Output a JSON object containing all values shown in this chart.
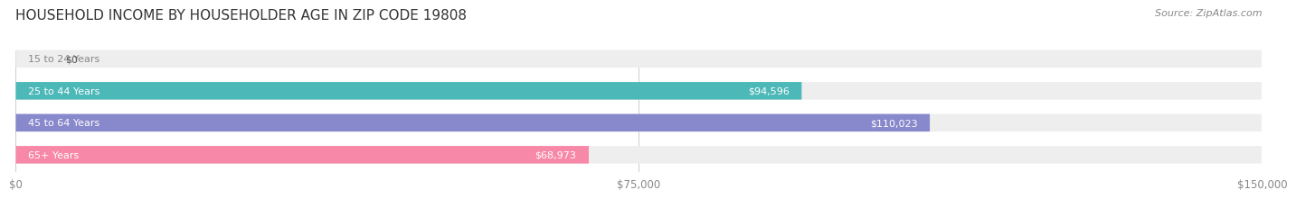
{
  "title": "HOUSEHOLD INCOME BY HOUSEHOLDER AGE IN ZIP CODE 19808",
  "source": "Source: ZipAtlas.com",
  "categories": [
    "15 to 24 Years",
    "25 to 44 Years",
    "45 to 64 Years",
    "65+ Years"
  ],
  "values": [
    0,
    94596,
    110023,
    68973
  ],
  "bar_colors": [
    "#c9a8d4",
    "#4db8b8",
    "#8888cc",
    "#f888a8"
  ],
  "track_color": "#eeeeee",
  "bar_height": 0.55,
  "xlim": [
    0,
    150000
  ],
  "xticks": [
    0,
    75000,
    150000
  ],
  "xtick_labels": [
    "$0",
    "$75,000",
    "$150,000"
  ],
  "label_color": "#ffffff",
  "label_color_zero": "#555555",
  "background_color": "#ffffff",
  "title_fontsize": 11,
  "source_fontsize": 8,
  "tick_fontsize": 8.5,
  "bar_label_fontsize": 8,
  "cat_label_fontsize": 8
}
